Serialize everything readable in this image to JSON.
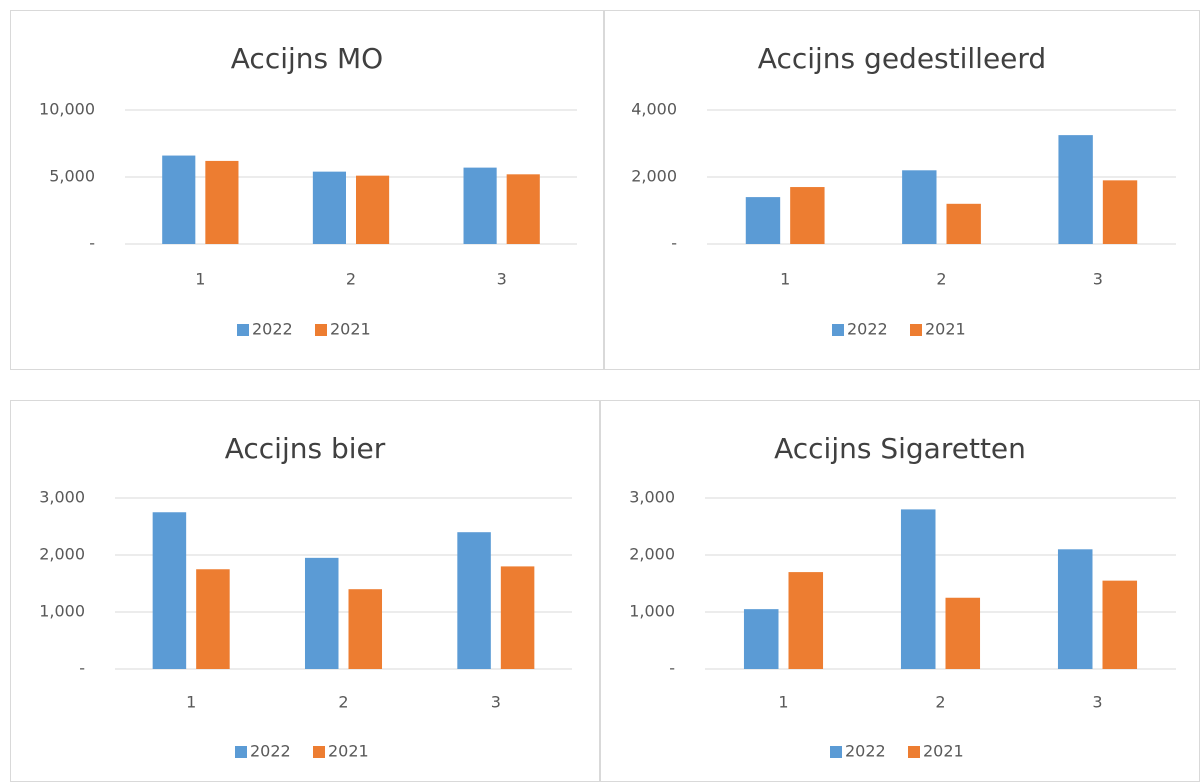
{
  "chart_data": [
    {
      "type": "bar",
      "title": "Accijns MO",
      "categories": [
        "1",
        "2",
        "3"
      ],
      "series": [
        {
          "name": "2022",
          "color": "#5b9bd5",
          "values": [
            6600,
            5400,
            5700
          ]
        },
        {
          "name": "2021",
          "color": "#ed7d31",
          "values": [
            6200,
            5100,
            5200
          ]
        }
      ],
      "ylim": [
        0,
        10000
      ],
      "yticks": [
        {
          "value": 0,
          "label": "-"
        },
        {
          "value": 5000,
          "label": "5,000"
        },
        {
          "value": 10000,
          "label": "10,000"
        }
      ],
      "grid": true,
      "legend": "bottom"
    },
    {
      "type": "bar",
      "title": "Accijns gedestilleerd",
      "categories": [
        "1",
        "2",
        "3"
      ],
      "series": [
        {
          "name": "2022",
          "color": "#5b9bd5",
          "values": [
            1400,
            2200,
            3250
          ]
        },
        {
          "name": "2021",
          "color": "#ed7d31",
          "values": [
            1700,
            1200,
            1900
          ]
        }
      ],
      "ylim": [
        0,
        4000
      ],
      "yticks": [
        {
          "value": 0,
          "label": "-"
        },
        {
          "value": 2000,
          "label": "2,000"
        },
        {
          "value": 4000,
          "label": "4,000"
        }
      ],
      "grid": true,
      "legend": "bottom"
    },
    {
      "type": "bar",
      "title": "Accijns bier",
      "categories": [
        "1",
        "2",
        "3"
      ],
      "series": [
        {
          "name": "2022",
          "color": "#5b9bd5",
          "values": [
            2750,
            1950,
            2400
          ]
        },
        {
          "name": "2021",
          "color": "#ed7d31",
          "values": [
            1750,
            1400,
            1800
          ]
        }
      ],
      "ylim": [
        0,
        3000
      ],
      "yticks": [
        {
          "value": 0,
          "label": "-"
        },
        {
          "value": 1000,
          "label": "1,000"
        },
        {
          "value": 2000,
          "label": "2,000"
        },
        {
          "value": 3000,
          "label": "3,000"
        }
      ],
      "grid": true,
      "legend": "bottom"
    },
    {
      "type": "bar",
      "title": "Accijns Sigaretten",
      "categories": [
        "1",
        "2",
        "3"
      ],
      "series": [
        {
          "name": "2022",
          "color": "#5b9bd5",
          "values": [
            1050,
            2800,
            2100
          ]
        },
        {
          "name": "2021",
          "color": "#ed7d31",
          "values": [
            1700,
            1250,
            1550
          ]
        }
      ],
      "ylim": [
        0,
        3000
      ],
      "yticks": [
        {
          "value": 0,
          "label": "-"
        },
        {
          "value": 1000,
          "label": "1,000"
        },
        {
          "value": 2000,
          "label": "2,000"
        },
        {
          "value": 3000,
          "label": "3,000"
        }
      ],
      "grid": true,
      "legend": "bottom"
    }
  ]
}
